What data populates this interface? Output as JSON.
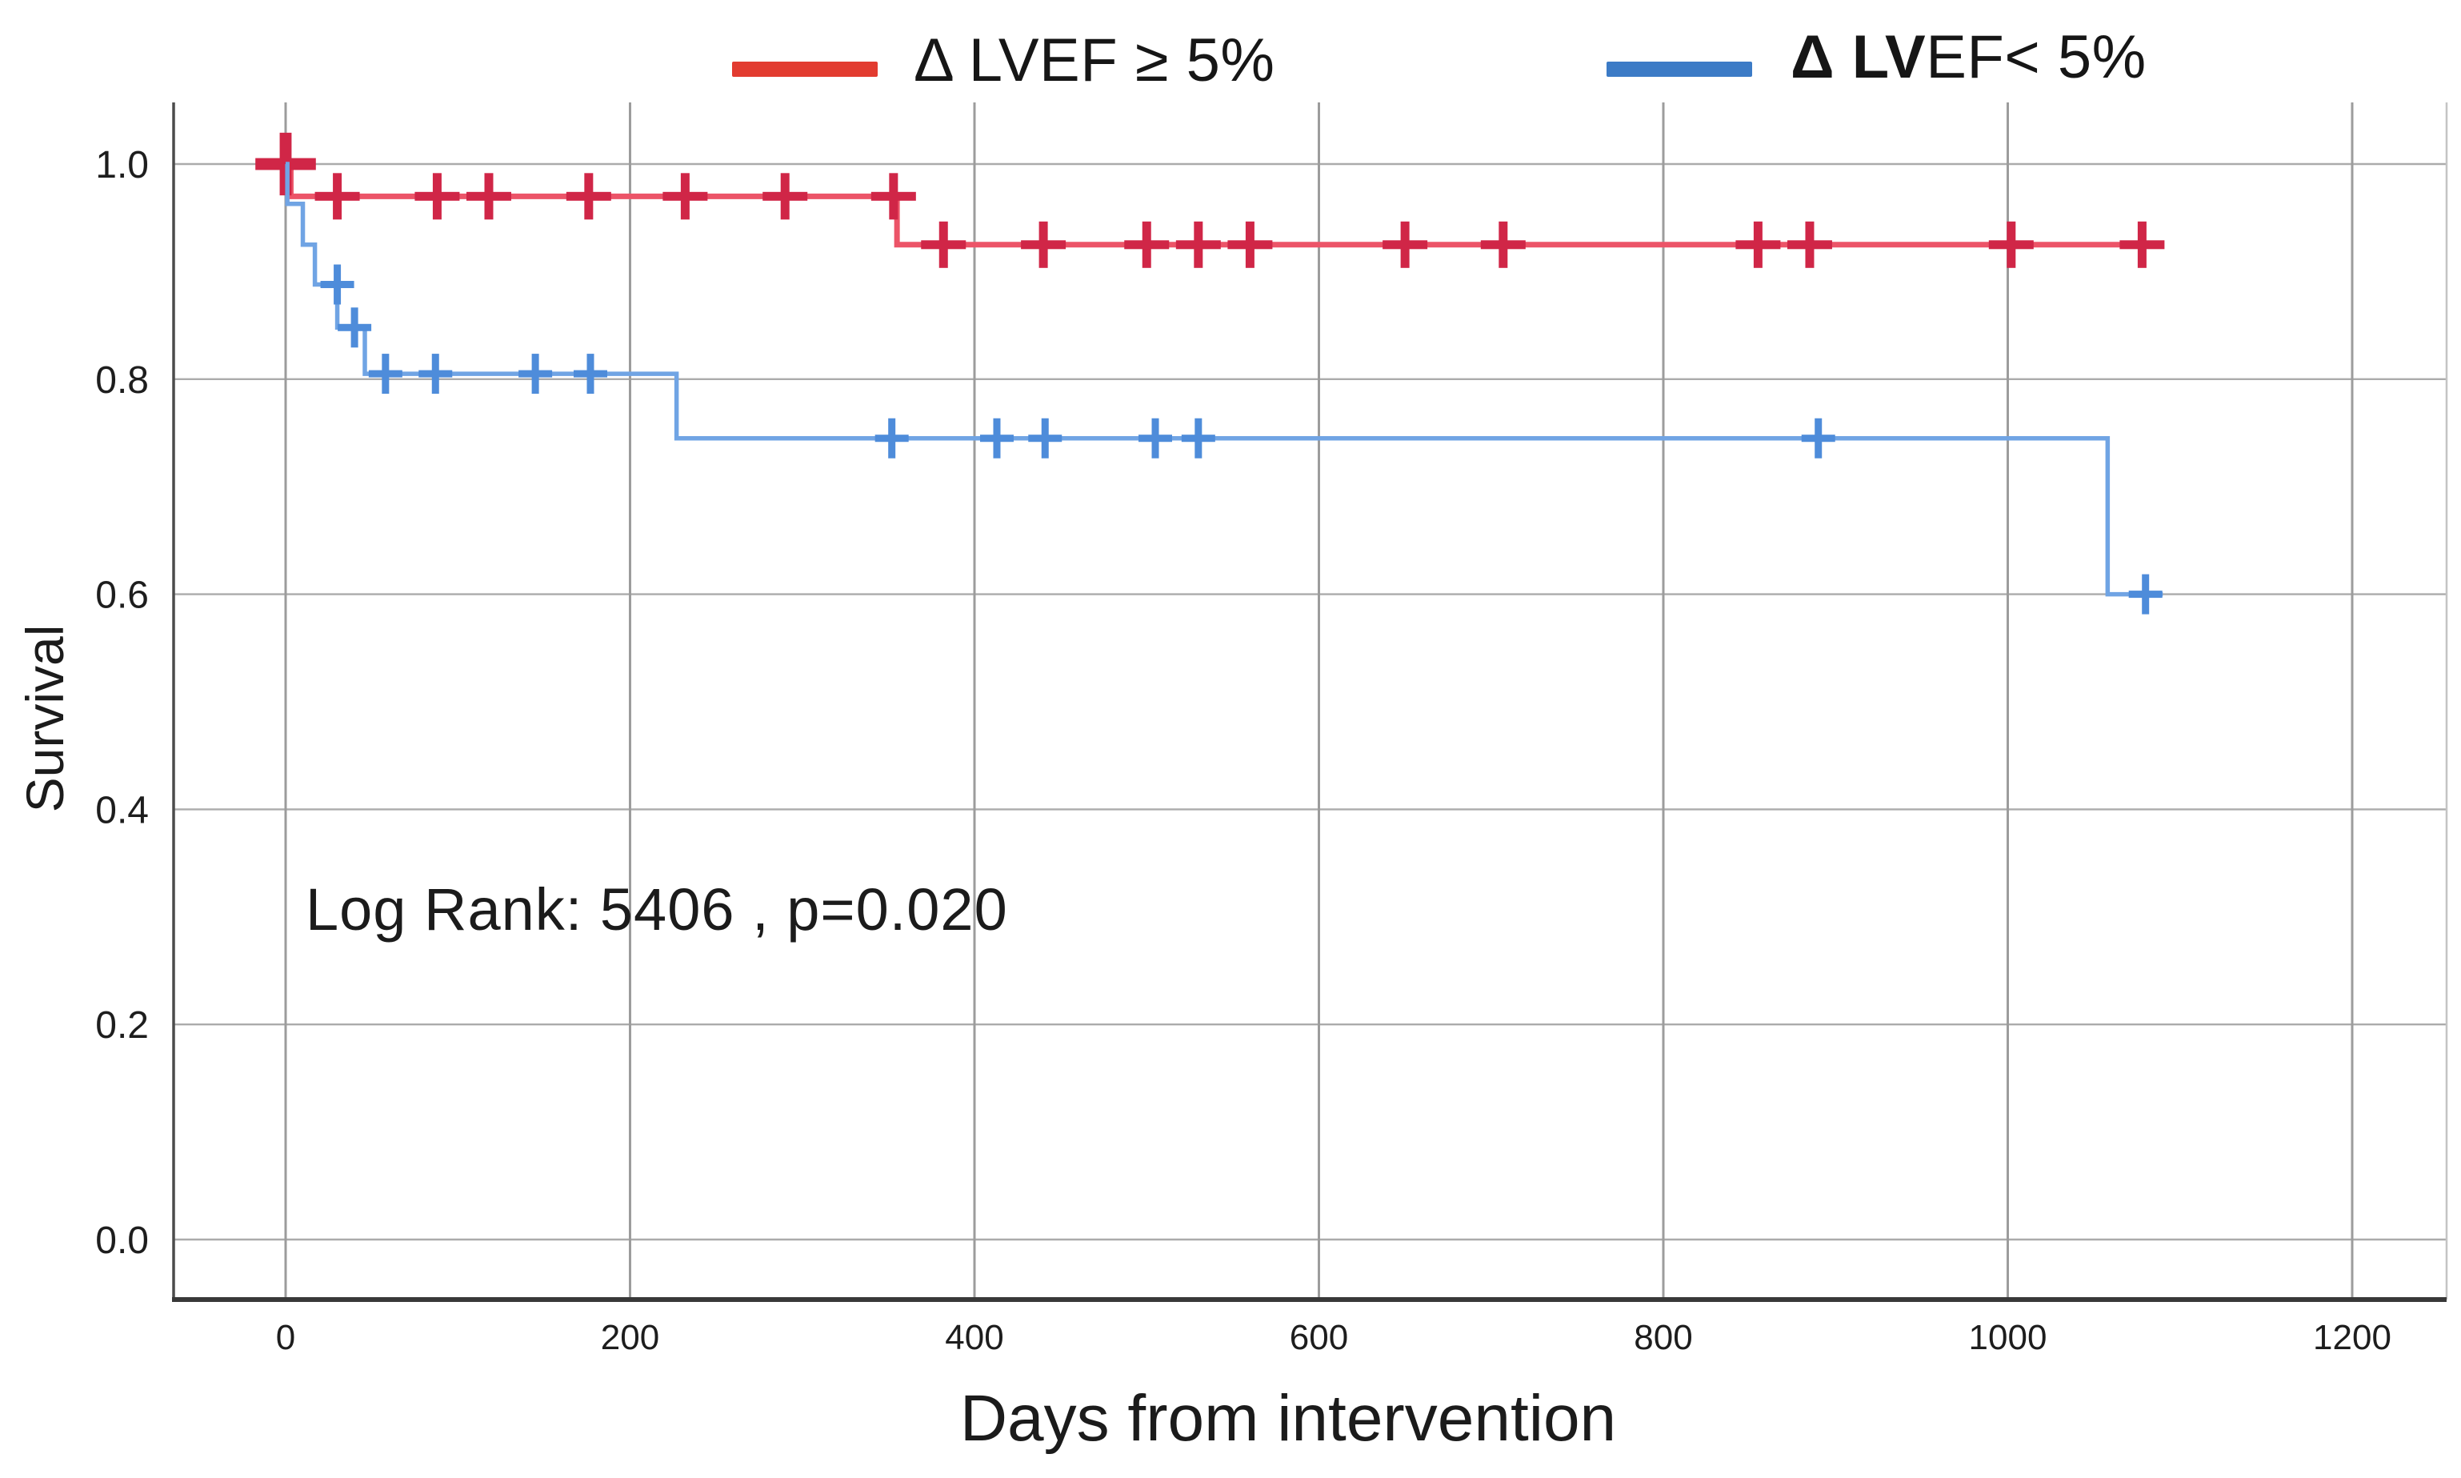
{
  "legend": {
    "items": [
      {
        "label": "Δ LVEF ≥ 5%",
        "color": "#e23b30"
      },
      {
        "label_bold": "Δ LV",
        "label_rest": "EF< 5%",
        "color": "#3c7bc6"
      }
    ]
  },
  "annotation": "Log Rank: 5406 , p=0.020",
  "chart_data": {
    "type": "line",
    "subtype": "kaplan_meier_step",
    "title": "",
    "xlabel": "Days from intervention",
    "ylabel": "Survival",
    "xlim": [
      -65,
      1255
    ],
    "ylim": [
      -0.055,
      1.057
    ],
    "xticks": [
      0,
      200,
      400,
      600,
      800,
      1000,
      1200
    ],
    "xtick_labels": [
      "0",
      "200",
      "400",
      "600",
      "800",
      "1000",
      "1200"
    ],
    "yticks": [
      1.0,
      0.8,
      0.6,
      0.4,
      0.2,
      0.0
    ],
    "ytick_labels": [
      "1.0",
      "0.8",
      "0.6",
      "0.4",
      "0.2",
      "0.0"
    ],
    "grid": true,
    "legend_position": "top",
    "series": [
      {
        "name": "Δ LVEF ≥ 5%",
        "line_color": "#ec5468",
        "censor_color": "#d02647",
        "line_width": 7,
        "steps": [
          [
            0,
            1.0
          ],
          [
            3,
            0.97
          ],
          [
            355,
            0.925
          ]
        ],
        "end_day": 1080,
        "censors": [
          [
            0,
            1.0,
            1.35
          ],
          [
            30,
            0.97
          ],
          [
            88,
            0.97
          ],
          [
            118,
            0.97
          ],
          [
            176,
            0.97
          ],
          [
            232,
            0.97
          ],
          [
            290,
            0.97
          ],
          [
            353,
            0.97
          ],
          [
            382,
            0.925
          ],
          [
            440,
            0.925
          ],
          [
            500,
            0.925
          ],
          [
            530,
            0.925
          ],
          [
            560,
            0.925
          ],
          [
            650,
            0.925
          ],
          [
            707,
            0.925
          ],
          [
            855,
            0.925
          ],
          [
            885,
            0.925
          ],
          [
            1002,
            0.925
          ],
          [
            1078,
            0.925
          ]
        ]
      },
      {
        "name": "Δ LVEF< 5%",
        "line_color": "#70a4e4",
        "censor_color": "#4e8cda",
        "line_width": 5.5,
        "steps": [
          [
            0,
            1.0
          ],
          [
            1,
            0.963
          ],
          [
            10,
            0.925
          ],
          [
            17,
            0.888
          ],
          [
            30,
            0.848
          ],
          [
            46,
            0.805
          ],
          [
            227,
            0.745
          ],
          [
            1058,
            0.6
          ]
        ],
        "end_day": 1090,
        "censors": [
          [
            30,
            0.888
          ],
          [
            40,
            0.848
          ],
          [
            58,
            0.805
          ],
          [
            87,
            0.805
          ],
          [
            145,
            0.805
          ],
          [
            177,
            0.805
          ],
          [
            352,
            0.745
          ],
          [
            413,
            0.745
          ],
          [
            441,
            0.745
          ],
          [
            505,
            0.745
          ],
          [
            530,
            0.745
          ],
          [
            890,
            0.745
          ],
          [
            1080,
            0.6
          ]
        ]
      }
    ]
  }
}
